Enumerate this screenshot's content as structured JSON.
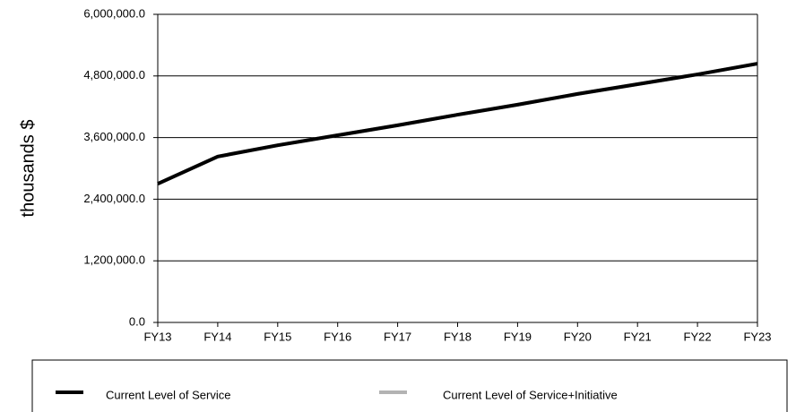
{
  "chart_data": {
    "type": "line",
    "y_label": "thousands $",
    "categories": [
      "FY13",
      "FY14",
      "FY15",
      "FY16",
      "FY17",
      "FY18",
      "FY19",
      "FY20",
      "FY21",
      "FY22",
      "FY23"
    ],
    "series": [
      {
        "name": "Current Level of Service+Initiative",
        "color": "#b3b3b3",
        "values": [
          2700000,
          3230000,
          3450000,
          3645000,
          3840000,
          4045000,
          4240000,
          4450000,
          4640000,
          4830000,
          5040000
        ]
      },
      {
        "name": "Current Level of Service",
        "color": "#000000",
        "values": [
          2700000,
          3230000,
          3450000,
          3645000,
          3840000,
          4045000,
          4240000,
          4450000,
          4640000,
          4830000,
          5040000
        ]
      }
    ],
    "ylim": [
      0,
      6000000
    ],
    "yticks": [
      {
        "value": 0,
        "label": "0.0"
      },
      {
        "value": 1200000,
        "label": "1,200,000.0"
      },
      {
        "value": 2400000,
        "label": "2,400,000.0"
      },
      {
        "value": 3600000,
        "label": "3,600,000.0"
      },
      {
        "value": 4800000,
        "label": "4,800,000.0"
      },
      {
        "value": 6000000,
        "label": "6,000,000.0"
      }
    ],
    "grid": true,
    "legend_position": "bottom"
  }
}
